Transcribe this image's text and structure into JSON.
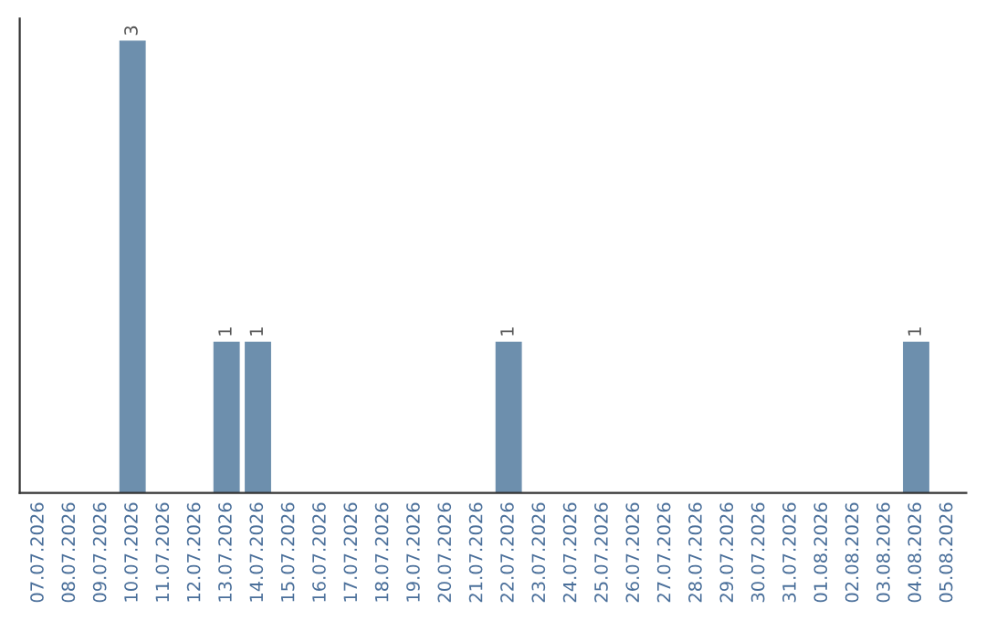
{
  "chart_data": {
    "type": "bar",
    "categories": [
      "07.07.2026",
      "08.07.2026",
      "09.07.2026",
      "10.07.2026",
      "11.07.2026",
      "12.07.2026",
      "13.07.2026",
      "14.07.2026",
      "15.07.2026",
      "16.07.2026",
      "17.07.2026",
      "18.07.2026",
      "19.07.2026",
      "20.07.2026",
      "21.07.2026",
      "22.07.2026",
      "23.07.2026",
      "24.07.2026",
      "25.07.2026",
      "26.07.2026",
      "27.07.2026",
      "28.07.2026",
      "29.07.2026",
      "30.07.2026",
      "31.07.2026",
      "01.08.2026",
      "02.08.2026",
      "03.08.2026",
      "04.08.2026",
      "05.08.2026"
    ],
    "values": [
      0,
      0,
      0,
      3,
      0,
      0,
      1,
      1,
      0,
      0,
      0,
      0,
      0,
      0,
      0,
      1,
      0,
      0,
      0,
      0,
      0,
      0,
      0,
      0,
      0,
      0,
      0,
      0,
      1,
      0
    ],
    "value_labels": [
      null,
      null,
      null,
      "3",
      null,
      null,
      "1",
      "1",
      null,
      null,
      null,
      null,
      null,
      null,
      null,
      "1",
      null,
      null,
      null,
      null,
      null,
      null,
      null,
      null,
      null,
      null,
      null,
      null,
      "1",
      null
    ],
    "color": "#6d8fad",
    "grid": false,
    "legend": false,
    "tick_labels": "x"
  }
}
